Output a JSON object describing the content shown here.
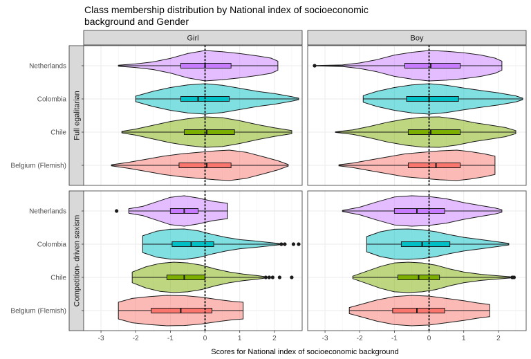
{
  "chart_data": {
    "type": "violin",
    "title_lines": [
      "Class membership distribution by National index of socioeconomic",
      "background and Gender"
    ],
    "xlabel": "Scores for National index of socioeconomic background",
    "ylabel": "",
    "xlim": [
      -3.5,
      2.8
    ],
    "x_ticks": [
      -3,
      -2,
      -1,
      0,
      1,
      2
    ],
    "reference_line_x": 0,
    "grid": true,
    "legend": "none",
    "columns": [
      "Girl",
      "Boy"
    ],
    "rows": [
      "Full egalitarian",
      "Competition- driven sexism"
    ],
    "categories": [
      "Netherlands",
      "Colombia",
      "Chile",
      "Belgium (Flemish)"
    ],
    "colors": {
      "Netherlands": "#c77cff",
      "Colombia": "#00bfc4",
      "Chile": "#7cae00",
      "Belgium (Flemish)": "#f8766d"
    },
    "panels": [
      {
        "row": "Full egalitarian",
        "col": "Girl",
        "groups": [
          {
            "category": "Netherlands",
            "min": -2.5,
            "max": 2.1,
            "q1": -0.7,
            "median": 0.0,
            "q3": 0.75,
            "density": [
              [
                -2.5,
                0.03
              ],
              [
                -2.0,
                0.12
              ],
              [
                -1.5,
                0.25
              ],
              [
                -1.0,
                0.48
              ],
              [
                -0.5,
                0.8
              ],
              [
                0.0,
                1.0
              ],
              [
                0.5,
                0.92
              ],
              [
                1.0,
                0.8
              ],
              [
                1.5,
                0.65
              ],
              [
                1.9,
                0.5
              ],
              [
                2.1,
                0.3
              ]
            ],
            "outliers": []
          },
          {
            "category": "Colombia",
            "min": -2.0,
            "max": 2.7,
            "q1": -0.7,
            "median": -0.2,
            "q3": 0.7,
            "density": [
              [
                -2.0,
                0.18
              ],
              [
                -1.5,
                0.5
              ],
              [
                -1.0,
                0.75
              ],
              [
                -0.5,
                0.92
              ],
              [
                0.0,
                1.0
              ],
              [
                0.5,
                0.9
              ],
              [
                1.0,
                0.7
              ],
              [
                1.5,
                0.5
              ],
              [
                2.0,
                0.35
              ],
              [
                2.5,
                0.15
              ],
              [
                2.7,
                0.05
              ]
            ],
            "outliers": []
          },
          {
            "category": "Chile",
            "min": -2.4,
            "max": 2.5,
            "q1": -0.6,
            "median": 0.05,
            "q3": 0.85,
            "density": [
              [
                -2.4,
                0.05
              ],
              [
                -2.0,
                0.2
              ],
              [
                -1.5,
                0.45
              ],
              [
                -1.0,
                0.7
              ],
              [
                -0.5,
                0.88
              ],
              [
                0.0,
                1.0
              ],
              [
                0.5,
                0.95
              ],
              [
                1.0,
                0.75
              ],
              [
                1.5,
                0.5
              ],
              [
                2.0,
                0.28
              ],
              [
                2.5,
                0.1
              ]
            ],
            "outliers": []
          },
          {
            "category": "Belgium (Flemish)",
            "min": -2.7,
            "max": 2.4,
            "q1": -0.75,
            "median": 0.05,
            "q3": 0.75,
            "density": [
              [
                -2.7,
                0.03
              ],
              [
                -2.2,
                0.2
              ],
              [
                -1.7,
                0.4
              ],
              [
                -1.2,
                0.6
              ],
              [
                -0.7,
                0.75
              ],
              [
                -0.2,
                0.85
              ],
              [
                0.3,
                0.95
              ],
              [
                0.7,
                1.0
              ],
              [
                1.2,
                0.85
              ],
              [
                1.7,
                0.55
              ],
              [
                2.1,
                0.3
              ],
              [
                2.4,
                0.05
              ]
            ],
            "outliers": []
          }
        ]
      },
      {
        "row": "Full egalitarian",
        "col": "Boy",
        "groups": [
          {
            "category": "Netherlands",
            "min": -3.3,
            "max": 2.1,
            "q1": -0.7,
            "median": 0.05,
            "q3": 0.9,
            "density": [
              [
                -3.3,
                0.01
              ],
              [
                -2.5,
                0.05
              ],
              [
                -2.0,
                0.18
              ],
              [
                -1.5,
                0.4
              ],
              [
                -1.0,
                0.7
              ],
              [
                -0.5,
                0.88
              ],
              [
                0.0,
                1.0
              ],
              [
                0.5,
                0.95
              ],
              [
                1.0,
                0.85
              ],
              [
                1.5,
                0.7
              ],
              [
                1.9,
                0.5
              ],
              [
                2.1,
                0.3
              ]
            ],
            "outliers": [
              -3.3
            ]
          },
          {
            "category": "Colombia",
            "min": -1.9,
            "max": 2.7,
            "q1": -0.65,
            "median": 0.0,
            "q3": 0.85,
            "density": [
              [
                -1.9,
                0.22
              ],
              [
                -1.5,
                0.5
              ],
              [
                -1.0,
                0.75
              ],
              [
                -0.5,
                0.92
              ],
              [
                0.0,
                1.0
              ],
              [
                0.5,
                0.9
              ],
              [
                1.0,
                0.72
              ],
              [
                1.5,
                0.55
              ],
              [
                2.0,
                0.4
              ],
              [
                2.5,
                0.2
              ],
              [
                2.7,
                0.05
              ]
            ],
            "outliers": []
          },
          {
            "category": "Chile",
            "min": -2.7,
            "max": 2.5,
            "q1": -0.6,
            "median": 0.05,
            "q3": 0.9,
            "density": [
              [
                -2.7,
                0.02
              ],
              [
                -2.2,
                0.15
              ],
              [
                -1.7,
                0.38
              ],
              [
                -1.2,
                0.65
              ],
              [
                -0.7,
                0.85
              ],
              [
                -0.2,
                0.98
              ],
              [
                0.3,
                1.0
              ],
              [
                0.8,
                0.85
              ],
              [
                1.3,
                0.62
              ],
              [
                1.8,
                0.45
              ],
              [
                2.2,
                0.3
              ],
              [
                2.5,
                0.1
              ]
            ],
            "outliers": []
          },
          {
            "category": "Belgium (Flemish)",
            "min": -2.6,
            "max": 1.9,
            "q1": -0.6,
            "median": 0.2,
            "q3": 0.9,
            "density": [
              [
                -2.6,
                0.03
              ],
              [
                -2.2,
                0.15
              ],
              [
                -1.7,
                0.35
              ],
              [
                -1.2,
                0.55
              ],
              [
                -0.7,
                0.75
              ],
              [
                -0.2,
                0.85
              ],
              [
                0.3,
                0.95
              ],
              [
                0.8,
                1.0
              ],
              [
                1.2,
                0.9
              ],
              [
                1.6,
                0.75
              ],
              [
                1.9,
                0.6
              ]
            ],
            "outliers": []
          }
        ]
      },
      {
        "row": "Competition- driven sexism",
        "col": "Girl",
        "groups": [
          {
            "category": "Netherlands",
            "min": -2.2,
            "max": 0.65,
            "q1": -1.0,
            "median": -0.6,
            "q3": -0.2,
            "density": [
              [
                -2.2,
                0.15
              ],
              [
                -1.8,
                0.3
              ],
              [
                -1.4,
                0.6
              ],
              [
                -1.0,
                0.9
              ],
              [
                -0.6,
                1.0
              ],
              [
                -0.2,
                0.85
              ],
              [
                0.2,
                0.65
              ],
              [
                0.5,
                0.55
              ],
              [
                0.65,
                0.5
              ]
            ],
            "outliers": [
              -2.55
            ]
          },
          {
            "category": "Colombia",
            "min": -1.8,
            "max": 2.15,
            "q1": -0.95,
            "median": -0.4,
            "q3": 0.25,
            "density": [
              [
                -1.8,
                0.55
              ],
              [
                -1.4,
                0.85
              ],
              [
                -1.0,
                0.98
              ],
              [
                -0.6,
                1.0
              ],
              [
                -0.2,
                0.88
              ],
              [
                0.2,
                0.65
              ],
              [
                0.6,
                0.45
              ],
              [
                1.0,
                0.3
              ],
              [
                1.5,
                0.2
              ],
              [
                1.9,
                0.1
              ],
              [
                2.15,
                0.04
              ]
            ],
            "outliers": [
              2.2,
              2.3,
              2.55,
              2.7
            ]
          },
          {
            "category": "Chile",
            "min": -2.1,
            "max": 1.7,
            "q1": -1.1,
            "median": -0.6,
            "q3": 0.0,
            "density": [
              [
                -2.1,
                0.35
              ],
              [
                -1.7,
                0.7
              ],
              [
                -1.3,
                0.92
              ],
              [
                -0.9,
                1.0
              ],
              [
                -0.5,
                0.95
              ],
              [
                -0.1,
                0.8
              ],
              [
                0.3,
                0.55
              ],
              [
                0.7,
                0.35
              ],
              [
                1.1,
                0.22
              ],
              [
                1.5,
                0.12
              ],
              [
                1.7,
                0.06
              ]
            ],
            "outliers": [
              1.75,
              1.85,
              1.95,
              2.15,
              2.5
            ]
          },
          {
            "category": "Belgium (Flemish)",
            "min": -2.5,
            "max": 1.1,
            "q1": -1.55,
            "median": -0.7,
            "q3": 0.2,
            "density": [
              [
                -2.5,
                0.55
              ],
              [
                -2.1,
                0.8
              ],
              [
                -1.6,
                0.92
              ],
              [
                -1.1,
                1.0
              ],
              [
                -0.6,
                0.98
              ],
              [
                -0.1,
                0.88
              ],
              [
                0.4,
                0.72
              ],
              [
                0.8,
                0.6
              ],
              [
                1.1,
                0.55
              ]
            ],
            "outliers": []
          }
        ]
      },
      {
        "row": "Competition- driven sexism",
        "col": "Boy",
        "groups": [
          {
            "category": "Netherlands",
            "min": -2.5,
            "max": 2.1,
            "q1": -1.0,
            "median": -0.35,
            "q3": 0.45,
            "density": [
              [
                -2.5,
                0.03
              ],
              [
                -2.0,
                0.25
              ],
              [
                -1.5,
                0.6
              ],
              [
                -1.0,
                0.92
              ],
              [
                -0.5,
                1.0
              ],
              [
                0.0,
                0.95
              ],
              [
                0.5,
                0.8
              ],
              [
                1.0,
                0.55
              ],
              [
                1.5,
                0.35
              ],
              [
                1.9,
                0.2
              ],
              [
                2.1,
                0.08
              ]
            ],
            "outliers": []
          },
          {
            "category": "Colombia",
            "min": -1.8,
            "max": 2.3,
            "q1": -0.8,
            "median": -0.2,
            "q3": 0.6,
            "density": [
              [
                -1.8,
                0.5
              ],
              [
                -1.4,
                0.82
              ],
              [
                -1.0,
                0.98
              ],
              [
                -0.6,
                1.0
              ],
              [
                -0.2,
                0.95
              ],
              [
                0.2,
                0.82
              ],
              [
                0.6,
                0.62
              ],
              [
                1.0,
                0.45
              ],
              [
                1.5,
                0.3
              ],
              [
                2.0,
                0.15
              ],
              [
                2.3,
                0.05
              ]
            ],
            "outliers": []
          },
          {
            "category": "Chile",
            "min": -2.2,
            "max": 2.35,
            "q1": -0.9,
            "median": -0.3,
            "q3": 0.3,
            "density": [
              [
                -2.2,
                0.08
              ],
              [
                -1.8,
                0.4
              ],
              [
                -1.4,
                0.72
              ],
              [
                -1.0,
                0.95
              ],
              [
                -0.6,
                1.0
              ],
              [
                -0.2,
                0.95
              ],
              [
                0.2,
                0.8
              ],
              [
                0.6,
                0.55
              ],
              [
                1.0,
                0.35
              ],
              [
                1.5,
                0.2
              ],
              [
                2.0,
                0.1
              ],
              [
                2.35,
                0.04
              ]
            ],
            "outliers": [
              2.4,
              2.45
            ]
          },
          {
            "category": "Belgium (Flemish)",
            "min": -2.3,
            "max": 1.75,
            "q1": -1.05,
            "median": -0.35,
            "q3": 0.45,
            "density": [
              [
                -2.3,
                0.2
              ],
              [
                -1.9,
                0.45
              ],
              [
                -1.5,
                0.7
              ],
              [
                -1.0,
                0.92
              ],
              [
                -0.5,
                1.0
              ],
              [
                0.0,
                0.95
              ],
              [
                0.5,
                0.8
              ],
              [
                1.0,
                0.65
              ],
              [
                1.4,
                0.5
              ],
              [
                1.75,
                0.4
              ]
            ],
            "outliers": []
          }
        ]
      }
    ]
  }
}
